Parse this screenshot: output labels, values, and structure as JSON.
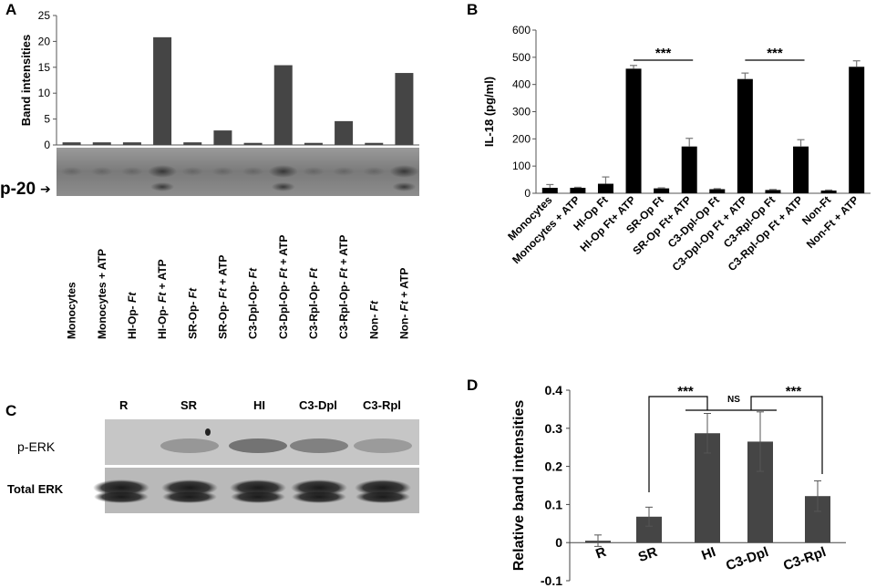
{
  "panels": [
    "A",
    "B",
    "C",
    "D"
  ],
  "chart_data": [
    {
      "id": "A",
      "type": "bar",
      "ylabel": "Band intensities",
      "ylim": [
        0,
        25
      ],
      "yticks": [
        0,
        5,
        10,
        15,
        20,
        25
      ],
      "categories": [
        [
          "Monocytes"
        ],
        [
          "Monocytes + ATP"
        ],
        [
          "HI-Op- ",
          "Ft"
        ],
        [
          "HI-Op- ",
          "Ft",
          " + ATP"
        ],
        [
          "SR-Op- ",
          "Ft"
        ],
        [
          "SR-Op- ",
          "Ft",
          " + ATP"
        ],
        [
          "C3-Dpl-Op- ",
          "Ft"
        ],
        [
          "C3-Dpl-Op- ",
          "Ft",
          " + ATP"
        ],
        [
          "C3-Rpl-Op- ",
          "Ft"
        ],
        [
          "C3-Rpl-Op- ",
          "Ft",
          " + ATP"
        ],
        [
          "Non- ",
          "Ft"
        ],
        [
          "Non- ",
          "Ft",
          " + ATP"
        ]
      ],
      "values": [
        0.5,
        0.5,
        0.5,
        20.8,
        0.5,
        2.8,
        0.4,
        15.4,
        0.4,
        4.6,
        0.4,
        13.9
      ],
      "blot_label": "p-20",
      "blot_arrow": "➔",
      "bar_color": "#454545"
    },
    {
      "id": "B",
      "type": "bar",
      "ylabel": "IL-18 (pg/ml)",
      "ylim": [
        0,
        600
      ],
      "yticks": [
        0,
        100,
        200,
        300,
        400,
        500,
        600
      ],
      "categories": [
        "Monocytes",
        "Monocytes + ATP",
        "HI-Op Ft",
        "HI-Op Ft+ ATP",
        "SR-Op Ft",
        "SR-Op Ft+ ATP",
        "C3-Dpl-Op Ft",
        "C3-Dpl-Op Ft + ATP",
        "C3-Rpl-Op Ft",
        "C3-Rpl-Op Ft + ATP",
        "Non-Ft",
        "Non-Ft + ATP"
      ],
      "values": [
        20,
        20,
        35,
        458,
        18,
        172,
        15,
        420,
        12,
        172,
        10,
        465
      ],
      "errors": [
        12,
        2,
        25,
        12,
        2,
        30,
        2,
        22,
        2,
        25,
        2,
        22
      ],
      "significance": [
        {
          "from": 3,
          "to": 5,
          "label": "***"
        },
        {
          "from": 7,
          "to": 9,
          "label": "***"
        }
      ],
      "bar_color": "#000000"
    },
    {
      "id": "D",
      "type": "bar",
      "ylabel": "Relative band intensities",
      "ylim": [
        -0.1,
        0.4
      ],
      "yticks": [
        -0.1,
        0,
        0.1,
        0.2,
        0.3,
        0.4
      ],
      "categories": [
        "R",
        "SR",
        "HI",
        "C3-Dpl",
        "C3-Rpl"
      ],
      "values": [
        0.005,
        0.068,
        0.287,
        0.265,
        0.122
      ],
      "errors": [
        0.015,
        0.025,
        0.052,
        0.078,
        0.04
      ],
      "significance": [
        {
          "from": 1,
          "to": 2,
          "label": "***"
        },
        {
          "from": 2,
          "to": 3,
          "label": "NS"
        },
        {
          "from": 3,
          "to": 4,
          "label": "***"
        }
      ],
      "bar_color": "#454545"
    }
  ],
  "blot_c": {
    "lanes": [
      "R",
      "SR",
      "HI",
      "C3-Dpl",
      "C3-Rpl"
    ],
    "rows": [
      "p-ERK",
      "Total ERK"
    ]
  }
}
